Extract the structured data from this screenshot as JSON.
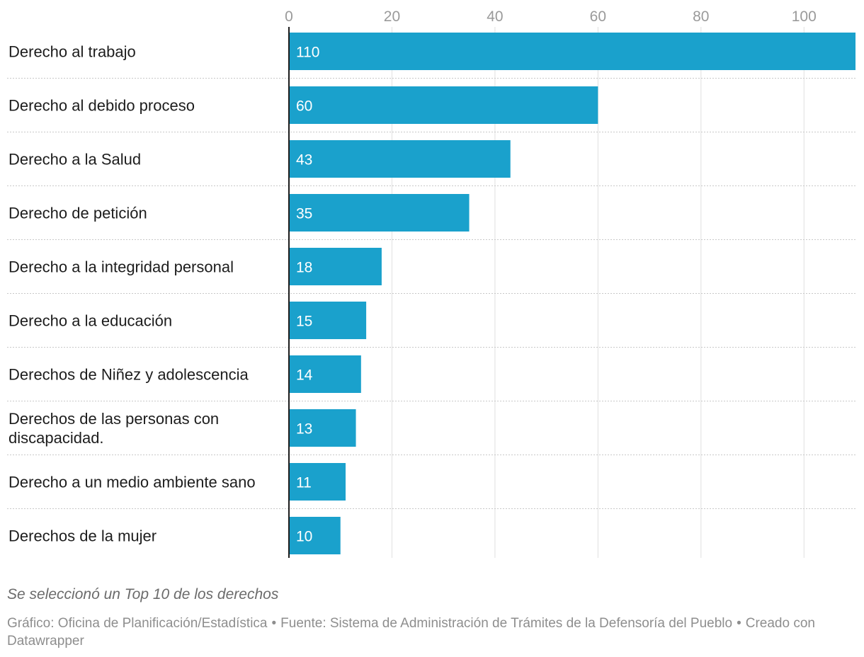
{
  "chart_data": {
    "type": "bar",
    "orientation": "horizontal",
    "categories": [
      "Derecho al trabajo",
      "Derecho al debido proceso",
      "Derecho a la Salud",
      "Derecho de petición",
      "Derecho a la integridad personal",
      "Derecho a la educación",
      "Derechos de Niñez y adolescencia",
      [
        "Derechos de las personas con",
        "discapacidad."
      ],
      "Derecho a un medio ambiente sano",
      "Derechos de la mujer"
    ],
    "values": [
      110,
      60,
      43,
      35,
      18,
      15,
      14,
      13,
      11,
      10
    ],
    "xlim": [
      0,
      110
    ],
    "xticks": [
      0,
      20,
      40,
      60,
      80,
      100
    ],
    "x_axis_position": "top",
    "grid": true,
    "value_labels": "inside-bar-start",
    "bar_color": "#1aa1cc",
    "grid_color": "#e0e0e0",
    "row_separator_color": "#c8c8c8"
  },
  "notes": "Se seleccionó un Top 10 de los derechos",
  "footer": {
    "chart_by": "Gráfico: Oficina de Planificación/Estadística",
    "source": "Fuente: Sistema de Administración de Trámites de la Defensoría del Pueblo",
    "created_with": "Creado con Datawrapper",
    "separator": "•"
  }
}
